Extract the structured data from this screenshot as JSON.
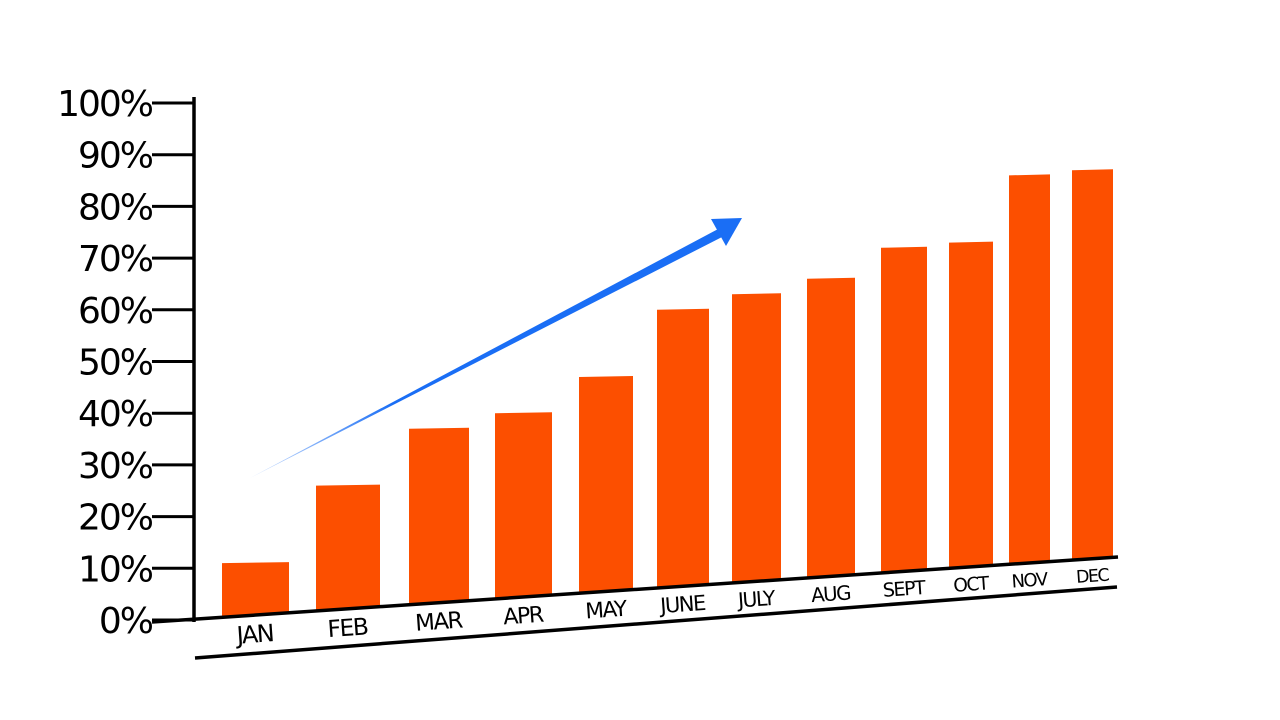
{
  "chart_data": {
    "type": "bar",
    "title": "",
    "xlabel": "",
    "ylabel": "",
    "ylim": [
      0,
      100
    ],
    "y_ticks": [
      "0%",
      "10%",
      "20%",
      "30%",
      "40%",
      "50%",
      "60%",
      "70%",
      "80%",
      "90%",
      "100%"
    ],
    "categories": [
      "JAN",
      "FEB",
      "MAR",
      "APR",
      "MAY",
      "JUNE",
      "JULY",
      "AUG",
      "SEPT",
      "OCT",
      "NOV",
      "DEC"
    ],
    "values": [
      11,
      26,
      37,
      40,
      47,
      60,
      63,
      66,
      72,
      73,
      86,
      87
    ],
    "grid": false,
    "legend": "none",
    "trend_arrow": "upward",
    "colors": {
      "bar": "#fc4f00",
      "arrow": "#1a6ef5",
      "axis": "#000000"
    }
  }
}
